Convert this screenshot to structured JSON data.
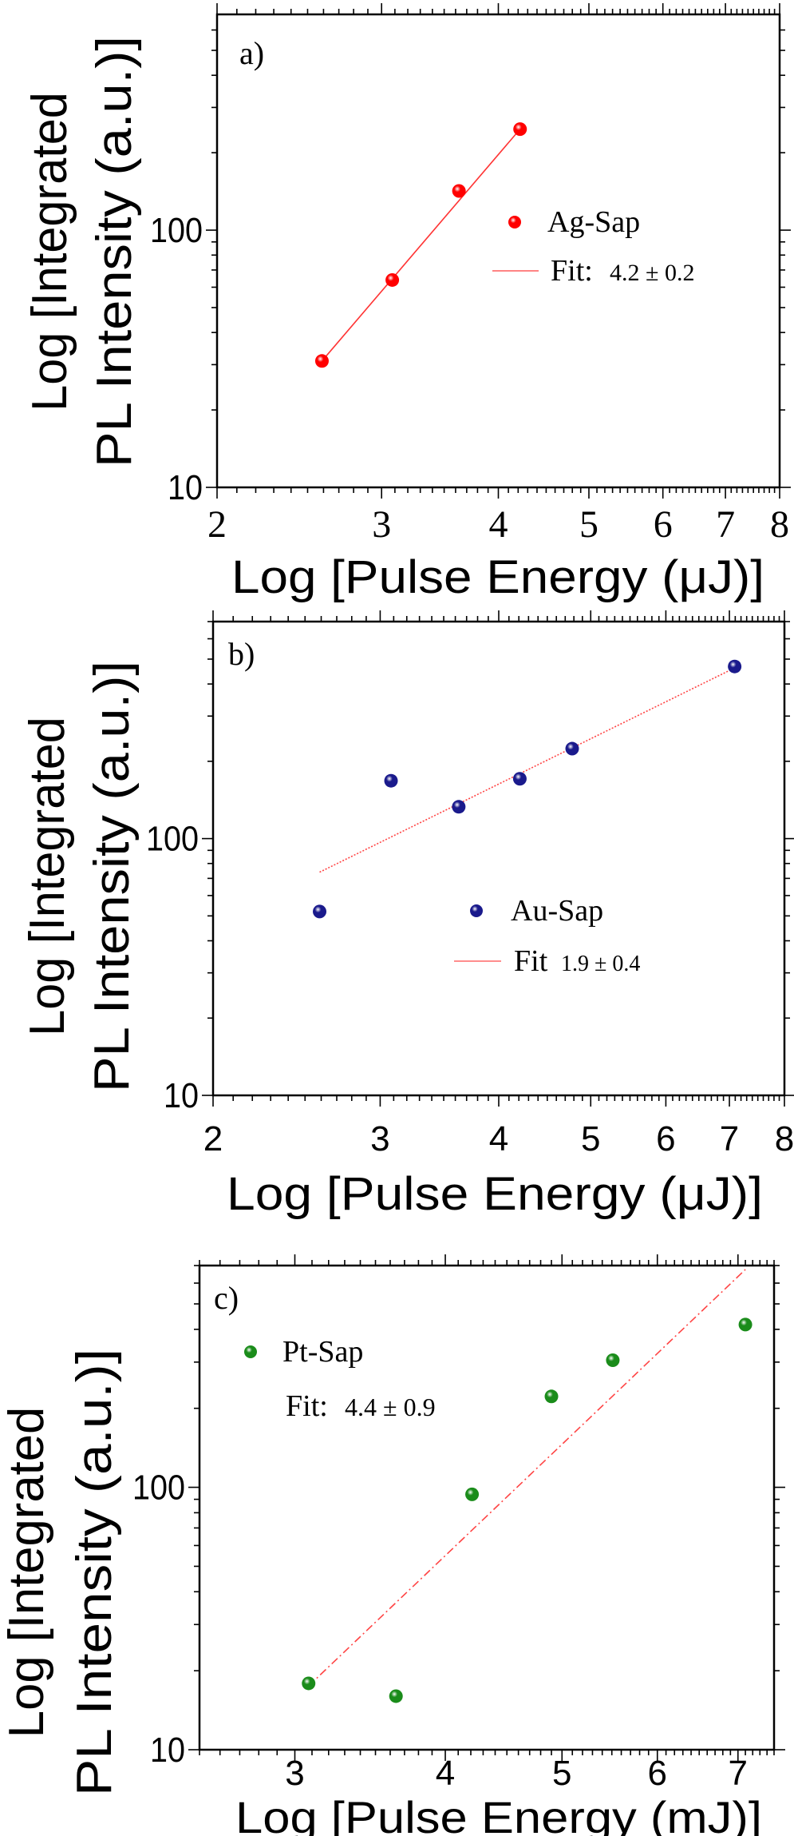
{
  "chart_data": [
    {
      "type": "scatter",
      "panel_label": "a)",
      "xlabel": "Log [Pulse Energy (μJ)]",
      "ylabel_lines": [
        "Log [Integrated",
        "PL Intensity (a.u.)]"
      ],
      "x_scale": "log",
      "y_scale": "log",
      "xlim": [
        2,
        8
      ],
      "ylim": [
        10,
        690
      ],
      "xticks": [
        2,
        3,
        4,
        5,
        6,
        7,
        8
      ],
      "xtick_labels": [
        "2",
        "3",
        "4",
        "5",
        "6",
        "7",
        "8"
      ],
      "yticks": [
        10,
        100
      ],
      "ytick_labels": [
        "10",
        "100"
      ],
      "marker_color": "#ff0000",
      "fit_color": "#ff3333",
      "fit_style": "solid",
      "series": [
        {
          "name": "Ag-Sap",
          "x": [
            2.59,
            3.08,
            3.63,
            4.22
          ],
          "y": [
            31,
            64,
            142,
            247
          ]
        }
      ],
      "fit": {
        "x": [
          2.59,
          4.22
        ],
        "y": [
          31,
          247
        ]
      },
      "legend": {
        "series_label": "Ag-Sap",
        "fit_label": "Fit:",
        "fit_value": "4.2 ± 0.2"
      }
    },
    {
      "type": "scatter",
      "panel_label": "b)",
      "xlabel": "Log [Pulse Energy (μJ)]",
      "ylabel_lines": [
        "Log [Integrated",
        "PL Intensity (a.u.)]"
      ],
      "x_scale": "log",
      "y_scale": "log",
      "xlim": [
        2,
        8
      ],
      "ylim": [
        10,
        700
      ],
      "xticks": [
        2,
        3,
        4,
        5,
        6,
        7,
        8
      ],
      "xtick_labels": [
        "2",
        "3",
        "4",
        "5",
        "6",
        "7",
        "8"
      ],
      "yticks": [
        10,
        100
      ],
      "ytick_labels": [
        "10",
        "100"
      ],
      "marker_color": "#1a1a8c",
      "fit_color": "#ff4444",
      "fit_style": "dotted",
      "series": [
        {
          "name": "Au-Sap",
          "x": [
            2.59,
            3.08,
            3.63,
            4.21,
            4.78,
            7.09
          ],
          "y": [
            52,
            168,
            133,
            171,
            224,
            468
          ]
        }
      ],
      "fit": {
        "x": [
          2.59,
          7.09
        ],
        "y": [
          74,
          462
        ]
      },
      "legend": {
        "series_label": "Au-Sap",
        "fit_label": "Fit",
        "fit_value": "1.9 ± 0.4"
      }
    },
    {
      "type": "scatter",
      "panel_label": "c)",
      "xlabel": "Log [Pulse Energy (mJ)]",
      "ylabel_lines": [
        "Log [Integrated",
        "PL Intensity (a.u.)]"
      ],
      "x_scale": "log",
      "y_scale": "log",
      "xlim": [
        2.5,
        7.5
      ],
      "ylim": [
        10,
        700
      ],
      "xticks": [
        3,
        4,
        5,
        6,
        7
      ],
      "xtick_labels": [
        "3",
        "4",
        "5",
        "6",
        "7"
      ],
      "yticks": [
        10,
        100
      ],
      "ytick_labels": [
        "10",
        "100"
      ],
      "marker_color": "#1a8c1a",
      "fit_color": "#ff4444",
      "fit_style": "dashdot",
      "series": [
        {
          "name": "Pt-Sap",
          "x": [
            3.08,
            3.64,
            4.21,
            4.9,
            5.51,
            7.1
          ],
          "y": [
            17.9,
            16,
            94,
            222,
            305,
            417
          ]
        }
      ],
      "fit": {
        "x": [
          3.08,
          7.1
        ],
        "y": [
          17.5,
          676
        ]
      },
      "legend": {
        "series_label": "Pt-Sap",
        "fit_label": "Fit:",
        "fit_value": "4.4 ± 0.9"
      }
    }
  ]
}
